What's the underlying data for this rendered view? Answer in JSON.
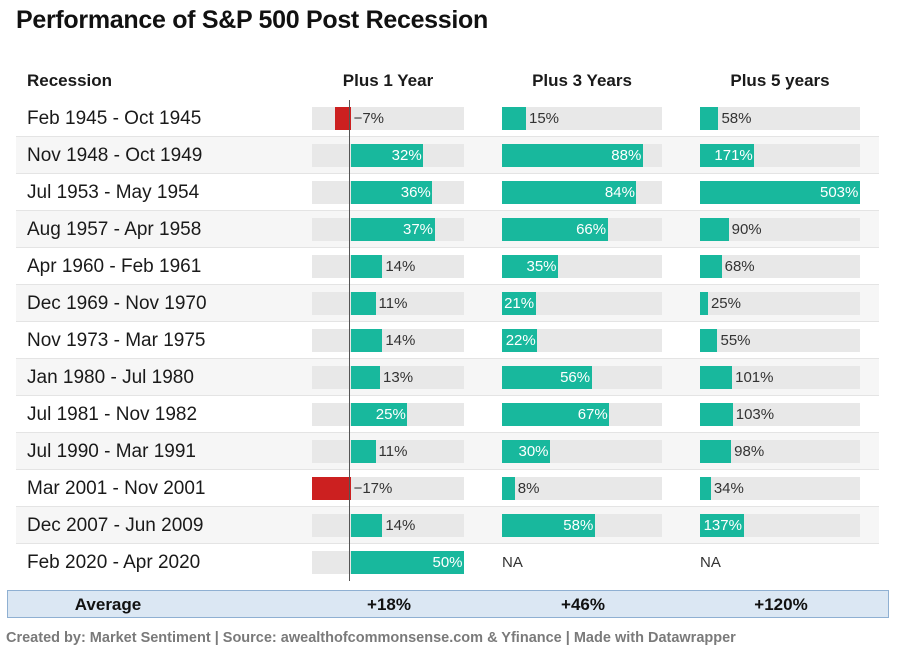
{
  "title": "Performance of S&P 500 Post Recession",
  "columns": {
    "recession": "Recession",
    "plus1": "Plus 1 Year",
    "plus3": "Plus 3 Years",
    "plus5": "Plus 5 years"
  },
  "colors": {
    "positive": "#18b89d",
    "negative": "#cc2020",
    "track": "#e8e8e8",
    "average_bg": "#dbe7f3"
  },
  "chart_data": {
    "type": "bar",
    "title": "Performance of S&P 500 Post Recession",
    "categories": [
      "Feb 1945 - Oct 1945",
      "Nov 1948 - Oct 1949",
      "Jul 1953 - May 1954",
      "Aug 1957 - Apr 1958",
      "Apr 1960 - Feb 1961",
      "Dec 1969 - Nov 1970",
      "Nov 1973 - Mar 1975",
      "Jan 1980 - Jul 1980",
      "Jul 1981 - Nov 1982",
      "Jul 1990 - Mar 1991",
      "Mar 2001 - Nov 2001",
      "Dec 2007 - Jun 2009",
      "Feb 2020 - Apr 2020"
    ],
    "series": [
      {
        "name": "Plus 1 Year",
        "values": [
          -7,
          32,
          36,
          37,
          14,
          11,
          14,
          13,
          25,
          11,
          -17,
          14,
          50
        ],
        "labels": [
          "−7%",
          "32%",
          "36%",
          "37%",
          "14%",
          "11%",
          "14%",
          "13%",
          "25%",
          "11%",
          "−17%",
          "14%",
          "50%"
        ],
        "range": [
          -17,
          50
        ]
      },
      {
        "name": "Plus 3 Years",
        "values": [
          15,
          88,
          84,
          66,
          35,
          21,
          22,
          56,
          67,
          30,
          8,
          58,
          null
        ],
        "labels": [
          "15%",
          "88%",
          "84%",
          "66%",
          "35%",
          "21%",
          "22%",
          "56%",
          "67%",
          "30%",
          "8%",
          "58%",
          "NA"
        ],
        "range": [
          0,
          100
        ]
      },
      {
        "name": "Plus 5 years",
        "values": [
          58,
          171,
          503,
          90,
          68,
          25,
          55,
          101,
          103,
          98,
          34,
          137,
          null
        ],
        "labels": [
          "58%",
          "171%",
          "503%",
          "90%",
          "68%",
          "25%",
          "55%",
          "101%",
          "103%",
          "98%",
          "34%",
          "137%",
          "NA"
        ],
        "range": [
          0,
          503
        ]
      }
    ]
  },
  "average": {
    "label": "Average",
    "plus1": "+18%",
    "plus3": "+46%",
    "plus5": "+120%"
  },
  "footer": "Created by: Market Sentiment | Source: awealthofcommonsense.com & Yfinance | Made with Datawrapper"
}
